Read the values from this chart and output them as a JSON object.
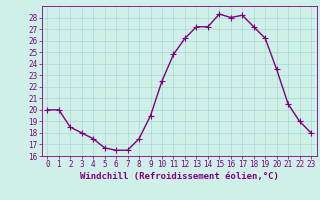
{
  "x": [
    0,
    1,
    2,
    3,
    4,
    5,
    6,
    7,
    8,
    9,
    10,
    11,
    12,
    13,
    14,
    15,
    16,
    17,
    18,
    19,
    20,
    21,
    22,
    23
  ],
  "y": [
    20,
    20,
    18.5,
    18,
    17.5,
    16.7,
    16.5,
    16.5,
    17.5,
    19.5,
    22.5,
    24.8,
    26.2,
    27.2,
    27.2,
    28.3,
    28.0,
    28.2,
    27.2,
    26.2,
    23.5,
    20.5,
    19.0,
    18.0
  ],
  "line_color": "#800080",
  "marker": "+",
  "marker_size": 4,
  "bg_color": "#cef0e8",
  "grid_color": "#a8d8d0",
  "xlabel": "Windchill (Refroidissement éolien,°C)",
  "xlim": [
    -0.5,
    23.5
  ],
  "ylim": [
    16,
    29
  ],
  "yticks": [
    16,
    17,
    18,
    19,
    20,
    21,
    22,
    23,
    24,
    25,
    26,
    27,
    28
  ],
  "xticks": [
    0,
    1,
    2,
    3,
    4,
    5,
    6,
    7,
    8,
    9,
    10,
    11,
    12,
    13,
    14,
    15,
    16,
    17,
    18,
    19,
    20,
    21,
    22,
    23
  ],
  "tick_color": "#800080",
  "label_color": "#800080",
  "tick_fontsize": 5.5,
  "xlabel_fontsize": 6.5,
  "linewidth": 1.0
}
